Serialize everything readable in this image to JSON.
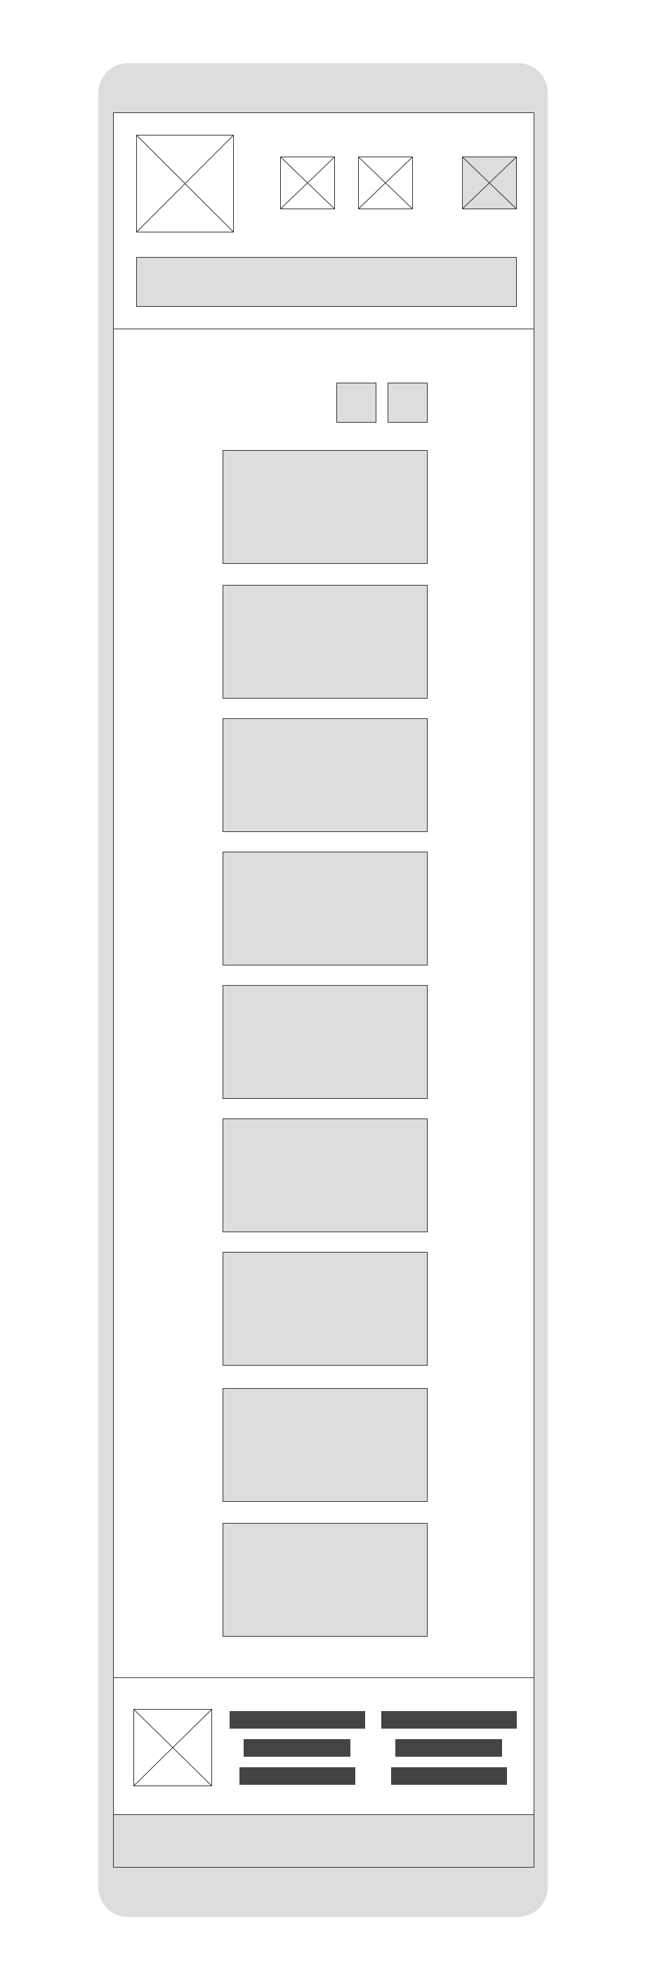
{
  "header": {
    "logo_icon": "image-placeholder-icon",
    "actions": [
      {
        "icon": "image-placeholder-icon"
      },
      {
        "icon": "image-placeholder-icon"
      },
      {
        "icon": "image-placeholder-icon",
        "highlighted": true
      }
    ],
    "search": {
      "placeholder": ""
    }
  },
  "controls": {
    "buttons": [
      "",
      ""
    ]
  },
  "tiles": [
    "",
    "",
    "",
    "",
    "",
    "",
    "",
    "",
    ""
  ],
  "footer": {
    "logo_icon": "image-placeholder-icon",
    "link_columns": [
      [
        "",
        "",
        ""
      ],
      [
        "",
        "",
        ""
      ]
    ]
  },
  "colors": {
    "placeholder_fill": "#dddddd",
    "stroke": "#333333",
    "text_bar": "#444444",
    "background": "#ffffff"
  }
}
